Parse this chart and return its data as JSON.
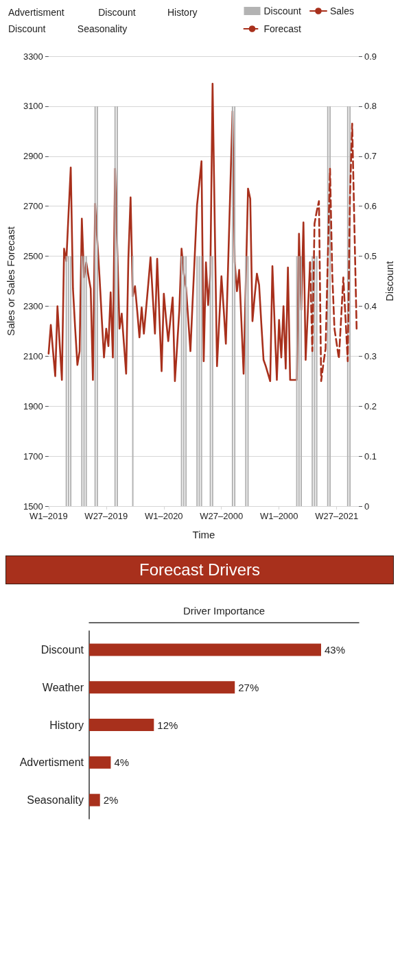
{
  "chart_data": [
    {
      "type": "line",
      "xlabel": "Time",
      "ylabel": "Sales or Sales Forecast",
      "y2label": "Discount",
      "categories": [
        "W1–2019",
        null,
        null,
        null,
        null,
        null,
        null,
        null,
        null,
        null,
        null,
        null,
        null,
        null,
        null,
        null,
        null,
        null,
        null,
        null,
        null,
        null,
        null,
        null,
        null,
        null,
        "W27–2019",
        null,
        null,
        null,
        null,
        null,
        null,
        null,
        null,
        null,
        null,
        null,
        null,
        null,
        null,
        null,
        null,
        null,
        null,
        null,
        null,
        null,
        null,
        null,
        null,
        null,
        "W1–2020",
        null,
        null,
        null,
        null,
        null,
        null,
        null,
        null,
        null,
        null,
        null,
        null,
        null,
        null,
        null,
        null,
        null,
        null,
        null,
        null,
        null,
        null,
        null,
        null,
        null,
        "W27–2000",
        null,
        null,
        null,
        null,
        null,
        null,
        null,
        null,
        null,
        null,
        null,
        null,
        null,
        null,
        null,
        null,
        null,
        null,
        null,
        null,
        null,
        null,
        null,
        null,
        null,
        "W1–2000",
        null,
        null,
        null,
        null,
        null,
        null,
        null,
        null,
        null,
        null,
        null,
        null,
        null,
        null,
        null,
        null,
        null,
        null,
        null,
        null,
        null,
        null,
        null,
        null,
        null,
        "W27–2021",
        null,
        null,
        null,
        null,
        null,
        null,
        null,
        null,
        null,
        null
      ],
      "ylim": [
        1500,
        3300
      ],
      "yticks": [
        1500,
        1700,
        1900,
        2100,
        2300,
        2500,
        2700,
        2900,
        3100,
        3300
      ],
      "y2lim": [
        0,
        0.9
      ],
      "y2ticks": [
        0,
        0.1,
        0.2,
        0.3,
        0.4,
        0.5,
        0.6,
        0.7,
        0.8,
        0.9
      ],
      "grid": "y",
      "legend": "top right",
      "marker": "none",
      "series": [
        {
          "name": "Discount",
          "type": "bar",
          "axis": "y2",
          "color": "#b3b3b3",
          "values": [
            null,
            null,
            null,
            null,
            null,
            null,
            null,
            null,
            0.5,
            0.5,
            0.5,
            null,
            null,
            null,
            null,
            0.5,
            0.5,
            0.5,
            null,
            null,
            null,
            0.8,
            0.8,
            null,
            null,
            null,
            null,
            null,
            null,
            null,
            0.8,
            0.8,
            null,
            null,
            null,
            null,
            null,
            null,
            0.5,
            null,
            null,
            null,
            null,
            null,
            null,
            null,
            null,
            null,
            null,
            null,
            null,
            null,
            null,
            null,
            null,
            null,
            null,
            null,
            null,
            null,
            0.5,
            0.5,
            0.5,
            null,
            null,
            null,
            null,
            0.5,
            0.5,
            0.5,
            null,
            null,
            null,
            0.5,
            0.5,
            null,
            null,
            null,
            null,
            null,
            null,
            null,
            null,
            0.8,
            0.8,
            null,
            null,
            null,
            null,
            0.5,
            0.5,
            null,
            null,
            null,
            null,
            null,
            null,
            null,
            null,
            null,
            null,
            null,
            null,
            null,
            null,
            null,
            null,
            null,
            null,
            null,
            null,
            null,
            0.5,
            0.5,
            0.5,
            null,
            null,
            null,
            null,
            0.5,
            0.5,
            0.5,
            null,
            null,
            null,
            null,
            0.8,
            0.8,
            null,
            null,
            null,
            null,
            null,
            null,
            null,
            0.8,
            0.8,
            null,
            null,
            null,
            null
          ]
        },
        {
          "name": "Sales",
          "type": "line",
          "color": "#a8301c",
          "line_style": "solid",
          "values": [
            2110,
            2225,
            2120,
            2020,
            2300,
            2150,
            2005,
            2530,
            2480,
            2670,
            2855,
            2370,
            2210,
            2065,
            2120,
            2650,
            2415,
            2475,
            2420,
            2370,
            2005,
            2710,
            2560,
            2415,
            2250,
            2095,
            2210,
            2140,
            2355,
            2095,
            2850,
            2530,
            2210,
            2270,
            2150,
            2030,
            2490,
            2735,
            2340,
            2380,
            2280,
            2175,
            2295,
            2190,
            2290,
            2390,
            2495,
            2340,
            2190,
            2490,
            2260,
            2040,
            2350,
            2250,
            2160,
            2250,
            2335,
            2000,
            2140,
            2285,
            2530,
            2430,
            2375,
            2250,
            2120,
            2320,
            2510,
            2705,
            2790,
            2880,
            2080,
            2475,
            2305,
            2430,
            3190,
            2620,
            2060,
            2240,
            2420,
            2290,
            2150,
            2460,
            2770,
            3080,
            2475,
            2360,
            2445,
            2240,
            2030,
            2400,
            2770,
            2730,
            2240,
            2340,
            2430,
            2385,
            2230,
            2085,
            2060,
            2030,
            2000,
            2460,
            2230,
            2005,
            2245,
            2095,
            2300,
            2050,
            2455,
            2005,
            2005,
            2005,
            2005,
            2590,
            2285,
            2635,
            2085,
            2280,
            2475,
            null,
            null,
            null,
            null,
            null,
            null,
            null,
            null,
            null,
            null,
            null,
            null,
            null,
            null,
            null,
            null,
            null,
            null,
            null,
            null,
            null,
            null
          ]
        },
        {
          "name": "Forecast",
          "type": "line",
          "color": "#a8301c",
          "line_style": "dashed",
          "values": [
            null,
            null,
            null,
            null,
            null,
            null,
            null,
            null,
            null,
            null,
            null,
            null,
            null,
            null,
            null,
            null,
            null,
            null,
            null,
            null,
            null,
            null,
            null,
            null,
            null,
            null,
            null,
            null,
            null,
            null,
            null,
            null,
            null,
            null,
            null,
            null,
            null,
            null,
            null,
            null,
            null,
            null,
            null,
            null,
            null,
            null,
            null,
            null,
            null,
            null,
            null,
            null,
            null,
            null,
            null,
            null,
            null,
            null,
            null,
            null,
            null,
            null,
            null,
            null,
            null,
            null,
            null,
            null,
            null,
            null,
            null,
            null,
            null,
            null,
            null,
            null,
            null,
            null,
            null,
            null,
            null,
            null,
            null,
            null,
            null,
            null,
            null,
            null,
            null,
            null,
            null,
            null,
            null,
            null,
            null,
            null,
            null,
            null,
            null,
            null,
            null,
            null,
            null,
            null,
            null,
            null,
            null,
            null,
            null,
            null,
            null,
            null,
            null,
            null,
            null,
            null,
            null,
            null,
            2475,
            2120,
            2630,
            2680,
            2720,
            2000,
            2070,
            2130,
            2490,
            2850,
            2430,
            2210,
            2150,
            2090,
            2250,
            2415,
            2250,
            2080,
            2740,
            3030,
            2620,
            2210,
            null
          ]
        }
      ],
      "annotations": [
        "Advertisment",
        "Discount",
        "Discount",
        "Seasonality",
        "History"
      ]
    },
    {
      "type": "bar",
      "title": "Forecast Drivers",
      "xlabel": "Driver Importance",
      "orientation": "horizontal",
      "tick_labels": "y",
      "color": "#a8301c",
      "categories": [
        "Discount",
        "Weather",
        "History",
        "Advertisment",
        "Seasonality"
      ],
      "values": [
        43,
        27,
        12,
        4,
        2
      ],
      "value_labels": [
        "43%",
        "27%",
        "12%",
        "4%",
        "2%"
      ]
    }
  ]
}
